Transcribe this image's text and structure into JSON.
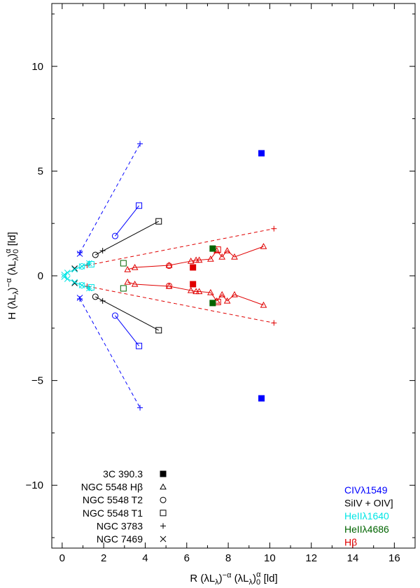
{
  "chart_data": {
    "type": "scatter",
    "title": "",
    "xlabel_main": "R (λL",
    "xlabel_sub1": "λ",
    "xlabel_mid": ")",
    "xlabel_sup1": "−α",
    "xlabel_mid2": " (λL",
    "xlabel_sub2": "λ",
    "xlabel_mid3": ")",
    "xlabel_sub3": "0",
    "xlabel_sup2": "α",
    "xlabel_end": " [ld]",
    "ylabel_main": "H (λL",
    "ylabel_sub1": "λ",
    "ylabel_mid": ")",
    "ylabel_sup1": "−α",
    "ylabel_mid2": " (λL",
    "ylabel_sub2": "λ",
    "ylabel_mid3": ")",
    "ylabel_sub3": "0",
    "ylabel_sup2": "α",
    "ylabel_end": " [ld]",
    "xlim": [
      -0.5,
      17
    ],
    "ylim": [
      -13,
      13
    ],
    "x_ticks": [
      0,
      2,
      4,
      6,
      8,
      10,
      12,
      14,
      16
    ],
    "x_tick_labels": [
      "0",
      "2",
      "4",
      "6",
      "8",
      "10",
      "12",
      "14",
      "16"
    ],
    "y_ticks": [
      -10,
      -5,
      0,
      5,
      10
    ],
    "y_tick_labels": [
      "−10",
      "−5",
      "0",
      "5",
      "10"
    ],
    "colors": {
      "civ": "#0000ff",
      "siiv": "#000000",
      "heii1640": "#00e5e5",
      "heii4686": "#006400",
      "hbeta": "#e00000"
    },
    "marker_legend": [
      {
        "label": "3C 390.3",
        "marker": "filled-square"
      },
      {
        "label": "NGC 5548 Hβ",
        "marker": "triangle"
      },
      {
        "label": "NGC 5548 T2",
        "marker": "circle"
      },
      {
        "label": "NGC 5548 T1",
        "marker": "square"
      },
      {
        "label": "NGC 3783",
        "marker": "plus"
      },
      {
        "label": "NGC 7469",
        "marker": "cross"
      }
    ],
    "line_legend": [
      {
        "label": "CIVλ1549",
        "color": "#0000ff"
      },
      {
        "label": "SiIV + OIV]",
        "color": "#000000"
      },
      {
        "label": "HeIIλ1640",
        "color": "#00e5e5"
      },
      {
        "label": "HeIIλ4686",
        "color": "#006400"
      },
      {
        "label": "Hβ",
        "color": "#e00000"
      }
    ],
    "series": [
      {
        "name": "NGC 3783 CIV",
        "color": "#0000ff",
        "marker": "plus",
        "dash": true,
        "points": [
          [
            0.85,
            1.1
          ],
          [
            3.75,
            6.3
          ]
        ],
        "mirror": true
      },
      {
        "name": "NGC 3783 Hbeta",
        "color": "#e00000",
        "marker": "plus",
        "dash": true,
        "points": [
          [
            1.2,
            0.5
          ],
          [
            10.2,
            2.25
          ]
        ],
        "mirror": true
      },
      {
        "name": "NGC 3783 SiIV",
        "color": "#000000",
        "marker": "plus",
        "dash": false,
        "points": [
          [
            1.95,
            1.2
          ]
        ],
        "mirror": true
      },
      {
        "name": "NGC 3783 HeII1640",
        "color": "#00e5e5",
        "marker": "plus",
        "dash": false,
        "points": [
          [
            1.3,
            0.6
          ]
        ],
        "mirror": true
      },
      {
        "name": "NGC 5548 T2 CIV",
        "color": "#0000ff",
        "marker": "circle",
        "dash": false,
        "points": [
          [
            2.55,
            1.9
          ]
        ],
        "mirror": true
      },
      {
        "name": "NGC 5548 T1 CIV",
        "color": "#0000ff",
        "marker": "square",
        "dash": false,
        "points": [
          [
            3.7,
            3.35
          ]
        ],
        "mirror": true
      },
      {
        "name": "NGC 5548 CIV link",
        "color": "#0000ff",
        "marker": "none",
        "dash": false,
        "points": [
          [
            2.55,
            1.9
          ],
          [
            3.7,
            3.35
          ]
        ],
        "mirror": true
      },
      {
        "name": "NGC 5548 SiIV",
        "color": "#000000",
        "marker": "none",
        "dash": false,
        "points": [
          [
            1.6,
            1.0
          ],
          [
            4.65,
            2.6
          ]
        ],
        "mirror": true
      },
      {
        "name": "NGC 5548 T2 SiIV",
        "color": "#000000",
        "marker": "circle",
        "dash": false,
        "points": [
          [
            1.6,
            1.0
          ]
        ],
        "mirror": true
      },
      {
        "name": "NGC 5548 T1 SiIV",
        "color": "#000000",
        "marker": "square",
        "dash": false,
        "points": [
          [
            4.65,
            2.6
          ]
        ],
        "mirror": true
      },
      {
        "name": "NGC 5548 HeII1640",
        "color": "#00e5e5",
        "marker": "circle",
        "dash": false,
        "points": [
          [
            0.95,
            0.45
          ]
        ],
        "mirror": true
      },
      {
        "name": "NGC 5548 T1 HeII1640",
        "color": "#00e5e5",
        "marker": "square",
        "dash": false,
        "points": [
          [
            1.4,
            0.55
          ]
        ],
        "mirror": true
      },
      {
        "name": "NGC 5548 T1 HeII4686",
        "color": "#006400",
        "marker": "square",
        "dash": false,
        "points": [
          [
            2.95,
            0.6
          ]
        ],
        "mirror": true
      },
      {
        "name": "NGC 7469 SiIV",
        "color": "#000000",
        "marker": "cross",
        "dash": false,
        "points": [
          [
            0.6,
            0.35
          ]
        ],
        "mirror": true
      },
      {
        "name": "NGC 7469 HeII1640",
        "color": "#00e5e5",
        "marker": "cross",
        "dash": false,
        "points": [
          [
            0.1,
            0.05
          ],
          [
            0.25,
            0.15
          ],
          [
            0.6,
            0.3
          ],
          [
            0.95,
            0.45
          ],
          [
            1.3,
            0.6
          ]
        ],
        "mirror": true,
        "connect": true
      },
      {
        "name": "NGC 7469 CIV",
        "color": "#0000ff",
        "marker": "cross",
        "dash": false,
        "points": [
          [
            0.85,
            1.05
          ]
        ],
        "mirror": true
      },
      {
        "name": "NGC 5548 Hbeta",
        "color": "#e00000",
        "marker": "triangle",
        "dash": false,
        "points": [
          [
            3.15,
            0.3
          ],
          [
            3.5,
            0.4
          ],
          [
            5.15,
            0.5
          ],
          [
            6.2,
            0.7
          ],
          [
            6.45,
            0.75
          ],
          [
            6.6,
            0.75
          ],
          [
            7.15,
            0.8
          ],
          [
            7.45,
            1.2
          ],
          [
            7.7,
            0.9
          ],
          [
            7.95,
            1.2
          ],
          [
            8.3,
            0.9
          ],
          [
            9.7,
            1.4
          ]
        ],
        "mirror": true,
        "connect": true
      },
      {
        "name": "NGC 5548 T2 Hbeta",
        "color": "#e00000",
        "marker": "circle",
        "dash": false,
        "points": [
          [
            5.15,
            0.48
          ]
        ],
        "mirror": true
      },
      {
        "name": "NGC 5548 T1 Hbeta",
        "color": "#e00000",
        "marker": "square",
        "dash": false,
        "points": [
          [
            7.5,
            1.25
          ]
        ],
        "mirror": true
      },
      {
        "name": "3C 390.3 CIV",
        "color": "#0000ff",
        "marker": "filled-square",
        "dash": false,
        "points": [
          [
            9.6,
            5.85
          ]
        ],
        "mirror": true
      },
      {
        "name": "3C 390.3 HeII4686",
        "color": "#006400",
        "marker": "filled-square",
        "dash": false,
        "points": [
          [
            7.25,
            1.3
          ]
        ],
        "mirror": true
      },
      {
        "name": "3C 390.3 Hbeta",
        "color": "#e00000",
        "marker": "filled-square",
        "dash": false,
        "points": [
          [
            6.3,
            0.4
          ]
        ],
        "mirror": true
      }
    ]
  }
}
